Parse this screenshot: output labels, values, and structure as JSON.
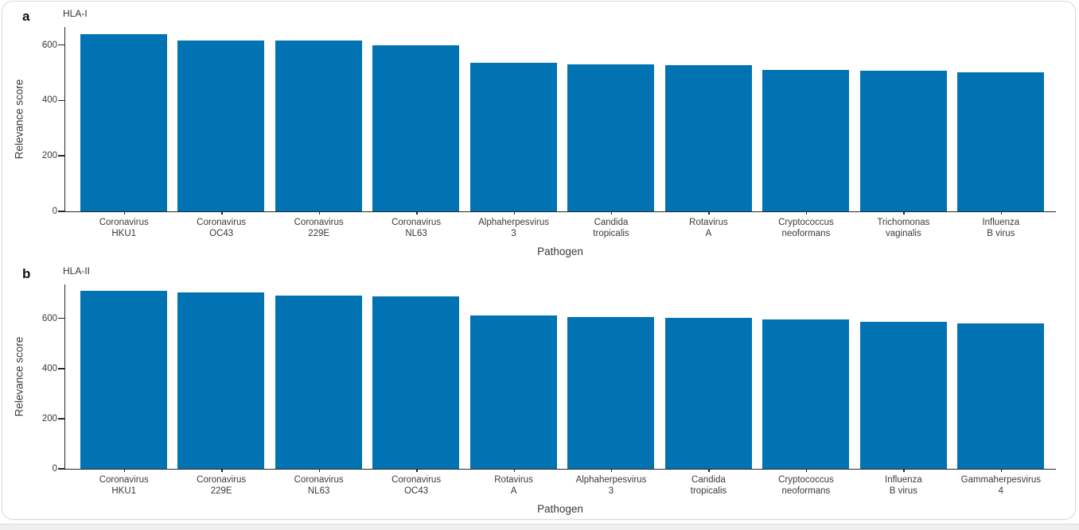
{
  "figure": {
    "panels": [
      {
        "letter": "a",
        "title": "HLA-I"
      },
      {
        "letter": "b",
        "title": "HLA-II"
      }
    ]
  },
  "colors": {
    "bar": "#0173b2",
    "axis": "#262626",
    "text": "#3a3a3a"
  },
  "chart_data": [
    {
      "type": "bar",
      "panel_label": "a",
      "title": "HLA-I",
      "xlabel": "Pathogen",
      "ylabel": "Relevance score",
      "ylim": [
        0,
        665
      ],
      "yticks": [
        0,
        200,
        400,
        600
      ],
      "grid": false,
      "legend": null,
      "bar_color": "#0173b2",
      "categories": [
        "Coronavirus\nHKU1",
        "Coronavirus\nOC43",
        "Coronavirus\n229E",
        "Coronavirus\nNL63",
        "Alphaherpesvirus\n3",
        "Candida\ntropicalis",
        "Rotavirus\nA",
        "Cryptococcus\nneoformans",
        "Trichomonas\nvaginalis",
        "Influenza\nB virus"
      ],
      "values": [
        640,
        616,
        615,
        598,
        537,
        531,
        528,
        509,
        506,
        503
      ]
    },
    {
      "type": "bar",
      "panel_label": "b",
      "title": "HLA-II",
      "xlabel": "Pathogen",
      "ylabel": "Relevance score",
      "ylim": [
        0,
        735
      ],
      "yticks": [
        0,
        200,
        400,
        600
      ],
      "grid": false,
      "legend": null,
      "bar_color": "#0173b2",
      "categories": [
        "Coronavirus\nHKU1",
        "Coronavirus\n229E",
        "Coronavirus\nNL63",
        "Coronavirus\nOC43",
        "Rotavirus\nA",
        "Alphaherpesvirus\n3",
        "Candida\ntropicalis",
        "Cryptococcus\nneoformans",
        "Influenza\nB virus",
        "Gammaherpesvirus\n4"
      ],
      "values": [
        710,
        703,
        691,
        687,
        610,
        605,
        602,
        596,
        585,
        580
      ]
    }
  ]
}
